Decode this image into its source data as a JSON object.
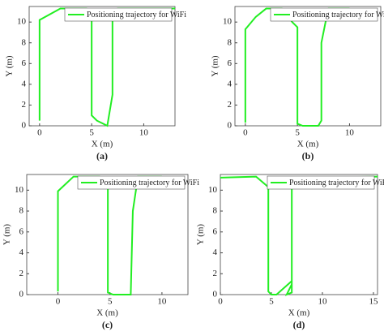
{
  "chart_data": [
    {
      "type": "line",
      "caption": "(a)",
      "xlabel": "X (m)",
      "ylabel": "Y (m)",
      "xlim": [
        -1,
        13
      ],
      "ylim": [
        0,
        11.5
      ],
      "xticks": [
        0,
        5,
        10
      ],
      "yticks": [
        0,
        2,
        4,
        6,
        8,
        10
      ],
      "legend": "top-right",
      "x": [
        0,
        0,
        2,
        4.5,
        5,
        5,
        5.5,
        6.5,
        7,
        7,
        7.5,
        13
      ],
      "series": [
        {
          "name": "Positioning trajectory for WiFi",
          "color": "#22ee22",
          "values": [
            0.5,
            10.2,
            11.3,
            11.3,
            11,
            1,
            0.5,
            0,
            3,
            11,
            11.3,
            11.3
          ]
        }
      ]
    },
    {
      "type": "line",
      "caption": "(b)",
      "xlabel": "X (m)",
      "ylabel": "Y (m)",
      "xlim": [
        -1,
        13
      ],
      "ylim": [
        0,
        11.5
      ],
      "xticks": [
        0,
        5,
        10
      ],
      "yticks": [
        0,
        2,
        4,
        6,
        8,
        10
      ],
      "legend": "top-right",
      "x": [
        0,
        0,
        1,
        2,
        3.5,
        4.5,
        5,
        5,
        5.5,
        7,
        7.3,
        7.3,
        7.8,
        8,
        10
      ],
      "series": [
        {
          "name": "Positioning trajectory for WiFi",
          "color": "#22ee22",
          "values": [
            0.3,
            9.3,
            10.5,
            11.3,
            11.3,
            10,
            9.5,
            0.2,
            0,
            0,
            0.5,
            8,
            10.5,
            11.3,
            11.3
          ]
        }
      ]
    },
    {
      "type": "line",
      "caption": "(c)",
      "xlabel": "X (m)",
      "ylabel": "Y (m)",
      "xlim": [
        -3,
        12.5
      ],
      "ylim": [
        0,
        11.5
      ],
      "xticks": [
        0,
        5,
        10
      ],
      "yticks": [
        0,
        2,
        4,
        6,
        8,
        10
      ],
      "legend": "top-right",
      "x": [
        0,
        0,
        1.5,
        4,
        4.8,
        4.8,
        5.3,
        7,
        7.2,
        7.5,
        7.7,
        10
      ],
      "series": [
        {
          "name": "Positioning trajectory for WiFi",
          "color": "#22ee22",
          "values": [
            0.3,
            9.9,
            11.3,
            11.3,
            10.5,
            0.2,
            0,
            0,
            8,
            10,
            11.3,
            11.3
          ]
        }
      ]
    },
    {
      "type": "line",
      "caption": "(d)",
      "xlabel": "X (m)",
      "ylabel": "Y (m)",
      "xlim": [
        0,
        15.4
      ],
      "ylim": [
        0,
        11.5
      ],
      "xticks": [
        0,
        5,
        10,
        15
      ],
      "yticks": [
        0,
        2,
        4,
        6,
        8,
        10
      ],
      "legend": "top-right",
      "x": [
        0,
        3.5,
        4.7,
        4.7,
        5,
        5.5,
        7,
        7,
        6.5,
        7,
        7,
        9,
        15.4
      ],
      "series": [
        {
          "name": "Positioning trajectory for WiFi",
          "color": "#22ee22",
          "values": [
            11.2,
            11.3,
            10.3,
            0.3,
            0,
            0,
            1.3,
            0.2,
            0,
            1,
            11,
            11.2,
            11.3
          ]
        }
      ]
    }
  ]
}
